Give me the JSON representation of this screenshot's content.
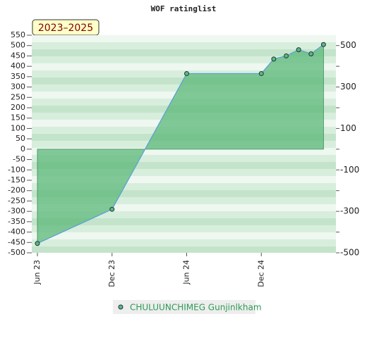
{
  "chart_data": {
    "type": "area",
    "title": "WOF ratinglist",
    "period_label": "2023–2025",
    "x": [
      "2023-06",
      "2023-12",
      "2024-06",
      "2024-12",
      "2025-01",
      "2025-02",
      "2025-03",
      "2025-04",
      "2025-05"
    ],
    "series": [
      {
        "name": "CHULUUNCHIMEG Gunjinlkham",
        "color": "#5aa0d8",
        "marker_color": "#5cb87a",
        "values": [
          -455,
          -290,
          365,
          365,
          435,
          450,
          480,
          460,
          505
        ]
      }
    ],
    "xlim": [
      "2023-06",
      "2025-06"
    ],
    "xticks": [
      {
        "value": "2023-06",
        "label": "Jun 23"
      },
      {
        "value": "2023-12",
        "label": "Dec 23"
      },
      {
        "value": "2024-06",
        "label": "Jun 24"
      },
      {
        "value": "2024-12",
        "label": "Dec 24"
      }
    ],
    "ylim": [
      -500,
      550
    ],
    "yticks": [
      -500,
      -450,
      -400,
      -350,
      -300,
      -250,
      -200,
      -150,
      -100,
      -50,
      0,
      50,
      100,
      150,
      200,
      250,
      300,
      350,
      400,
      450,
      500,
      550
    ],
    "y2lim": [
      -500,
      550
    ],
    "y2ticks": [
      -500,
      -300,
      -100,
      100,
      300,
      500
    ],
    "fill_color": "#5cb87a"
  }
}
